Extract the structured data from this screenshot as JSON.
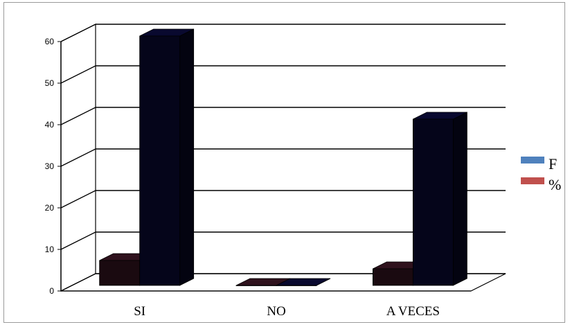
{
  "chart_data": {
    "type": "bar",
    "title": "",
    "xlabel": "",
    "ylabel": "",
    "categories": [
      "SI",
      "NO",
      "A VECES"
    ],
    "series": [
      {
        "name": "F",
        "values": [
          6,
          0,
          4
        ]
      },
      {
        "name": "%",
        "values": [
          60,
          0,
          40
        ]
      }
    ],
    "ylim": [
      0,
      60
    ],
    "yticks": [
      "0",
      "10",
      "20",
      "30",
      "40",
      "50",
      "60"
    ],
    "grid": true,
    "legend_position": "right",
    "legend_swatch_colors": {
      "F": "#4f81bd",
      "%": "#c0504d"
    },
    "bar_render_colors": {
      "F": "#1a0a10",
      "%": "#05051a"
    },
    "three_d": true
  }
}
